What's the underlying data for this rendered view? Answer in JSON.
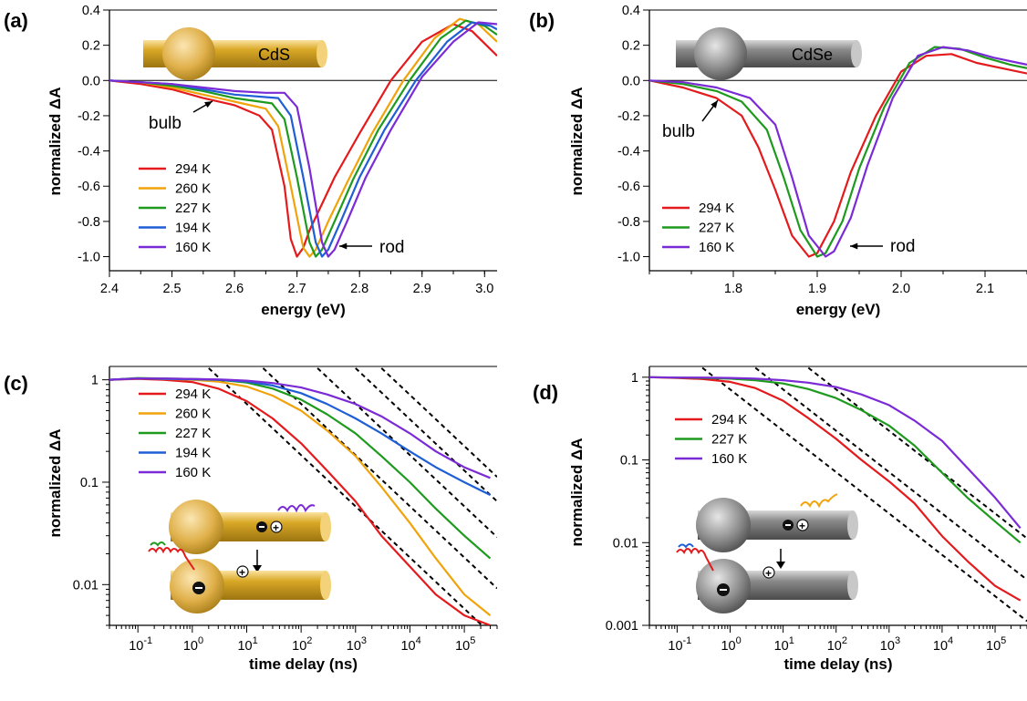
{
  "colors": {
    "294 K": "#e41a1c",
    "260 K": "#f0a30a",
    "227 K": "#1e9a1e",
    "194 K": "#1f5fd6",
    "160 K": "#7b2bd6",
    "cds_rod": "#d9a826",
    "cdse_rod": "#8a8a8a",
    "dashed_fit": "#000000"
  },
  "chart_data": [
    {
      "panel": "(a)",
      "type": "line",
      "material_label": "CdS",
      "xlabel": "energy (eV)",
      "ylabel": "normalized ΔA",
      "xlim": [
        2.4,
        3.02
      ],
      "ylim": [
        -1.08,
        0.4
      ],
      "xticks": [
        "2.4",
        "2.5",
        "2.6",
        "2.7",
        "2.8",
        "2.9",
        "3.0"
      ],
      "yticks": [
        "0.4",
        "0.2",
        "0.0",
        "-0.2",
        "-0.4",
        "-0.6",
        "-0.8",
        "-1.0"
      ],
      "annotations": [
        "bulb",
        "rod"
      ],
      "legend_position": "bottom-left",
      "series": [
        {
          "name": "294 K",
          "x": [
            2.4,
            2.45,
            2.5,
            2.55,
            2.6,
            2.64,
            2.66,
            2.68,
            2.69,
            2.7,
            2.71,
            2.72,
            2.74,
            2.76,
            2.8,
            2.85,
            2.9,
            2.95,
            2.98,
            3.02
          ],
          "y": [
            0,
            -0.02,
            -0.05,
            -0.1,
            -0.14,
            -0.2,
            -0.28,
            -0.6,
            -0.9,
            -1.0,
            -0.95,
            -0.85,
            -0.7,
            -0.55,
            -0.3,
            0.0,
            0.22,
            0.32,
            0.28,
            0.14
          ]
        },
        {
          "name": "260 K",
          "x": [
            2.4,
            2.45,
            2.5,
            2.55,
            2.6,
            2.65,
            2.67,
            2.69,
            2.71,
            2.72,
            2.73,
            2.75,
            2.78,
            2.82,
            2.87,
            2.92,
            2.96,
            2.99,
            3.02
          ],
          "y": [
            0,
            -0.01,
            -0.04,
            -0.08,
            -0.12,
            -0.16,
            -0.26,
            -0.6,
            -0.95,
            -1.0,
            -0.96,
            -0.8,
            -0.58,
            -0.3,
            0.0,
            0.24,
            0.35,
            0.32,
            0.22
          ]
        },
        {
          "name": "227 K",
          "x": [
            2.4,
            2.45,
            2.5,
            2.55,
            2.6,
            2.66,
            2.68,
            2.7,
            2.72,
            2.73,
            2.74,
            2.76,
            2.79,
            2.83,
            2.88,
            2.93,
            2.97,
            3.0,
            3.02
          ],
          "y": [
            0,
            -0.01,
            -0.03,
            -0.06,
            -0.1,
            -0.13,
            -0.22,
            -0.55,
            -0.92,
            -1.0,
            -0.96,
            -0.8,
            -0.56,
            -0.28,
            0.0,
            0.24,
            0.34,
            0.31,
            0.26
          ]
        },
        {
          "name": "194 K",
          "x": [
            2.4,
            2.45,
            2.5,
            2.55,
            2.6,
            2.67,
            2.69,
            2.71,
            2.73,
            2.74,
            2.75,
            2.77,
            2.8,
            2.84,
            2.89,
            2.94,
            2.98,
            3.01,
            3.02
          ],
          "y": [
            0,
            -0.01,
            -0.02,
            -0.05,
            -0.08,
            -0.1,
            -0.2,
            -0.55,
            -0.92,
            -1.0,
            -0.96,
            -0.8,
            -0.55,
            -0.28,
            0.0,
            0.22,
            0.33,
            0.31,
            0.29
          ]
        },
        {
          "name": "160 K",
          "x": [
            2.4,
            2.45,
            2.5,
            2.55,
            2.6,
            2.65,
            2.68,
            2.7,
            2.72,
            2.74,
            2.75,
            2.76,
            2.78,
            2.81,
            2.85,
            2.9,
            2.95,
            2.99,
            3.02
          ],
          "y": [
            0,
            -0.01,
            -0.02,
            -0.04,
            -0.06,
            -0.07,
            -0.07,
            -0.15,
            -0.5,
            -0.92,
            -1.0,
            -0.96,
            -0.8,
            -0.55,
            -0.28,
            0.02,
            0.22,
            0.33,
            0.32
          ]
        }
      ]
    },
    {
      "panel": "(b)",
      "type": "line",
      "material_label": "CdSe",
      "xlabel": "energy (eV)",
      "ylabel": "normalized ΔA",
      "xlim": [
        1.7,
        2.15
      ],
      "ylim": [
        -1.08,
        0.4
      ],
      "xticks": [
        "1.8",
        "1.9",
        "2.0",
        "2.1"
      ],
      "yticks": [
        "0.4",
        "0.2",
        "0.0",
        "-0.2",
        "-0.4",
        "-0.6",
        "-0.8",
        "-1.0"
      ],
      "annotations": [
        "bulb",
        "rod"
      ],
      "legend_position": "bottom-left",
      "series": [
        {
          "name": "294 K",
          "x": [
            1.7,
            1.74,
            1.78,
            1.81,
            1.83,
            1.85,
            1.87,
            1.89,
            1.9,
            1.92,
            1.94,
            1.97,
            2.0,
            2.03,
            2.06,
            2.09,
            2.12,
            2.15
          ],
          "y": [
            0,
            -0.04,
            -0.1,
            -0.2,
            -0.38,
            -0.62,
            -0.88,
            -1.0,
            -0.98,
            -0.8,
            -0.52,
            -0.2,
            0.05,
            0.14,
            0.15,
            0.1,
            0.07,
            0.04
          ]
        },
        {
          "name": "227 K",
          "x": [
            1.7,
            1.74,
            1.78,
            1.81,
            1.84,
            1.86,
            1.88,
            1.9,
            1.91,
            1.93,
            1.95,
            1.98,
            2.01,
            2.04,
            2.07,
            2.1,
            2.13,
            2.15
          ],
          "y": [
            0,
            -0.02,
            -0.06,
            -0.12,
            -0.28,
            -0.55,
            -0.85,
            -1.0,
            -0.98,
            -0.8,
            -0.5,
            -0.15,
            0.1,
            0.19,
            0.18,
            0.13,
            0.09,
            0.07
          ]
        },
        {
          "name": "160 K",
          "x": [
            1.7,
            1.74,
            1.78,
            1.82,
            1.85,
            1.87,
            1.89,
            1.91,
            1.92,
            1.94,
            1.96,
            1.99,
            2.02,
            2.05,
            2.08,
            2.11,
            2.14,
            2.15
          ],
          "y": [
            0,
            -0.01,
            -0.04,
            -0.1,
            -0.25,
            -0.55,
            -0.88,
            -1.0,
            -0.97,
            -0.78,
            -0.48,
            -0.1,
            0.14,
            0.19,
            0.17,
            0.13,
            0.1,
            0.09
          ]
        }
      ]
    },
    {
      "panel": "(c)",
      "type": "line",
      "xscale": "log",
      "yscale": "log",
      "xlabel": "time delay (ns)",
      "ylabel": "normalized ΔA",
      "xlim": [
        0.03,
        400000
      ],
      "ylim": [
        0.004,
        1.35
      ],
      "xticks": [
        0.1,
        1,
        10,
        100,
        1000,
        10000,
        100000
      ],
      "yticks": [
        "1",
        "0.1",
        "0.01"
      ],
      "legend_position": "top-left",
      "fit_lines": "dashed power-law fits",
      "series": [
        {
          "name": "294 K",
          "x": [
            0.03,
            0.1,
            0.3,
            1,
            3,
            10,
            30,
            100,
            300,
            1000,
            3000,
            10000,
            30000,
            100000,
            300000
          ],
          "y": [
            1.0,
            1.02,
            1.0,
            0.95,
            0.82,
            0.62,
            0.42,
            0.24,
            0.13,
            0.065,
            0.03,
            0.015,
            0.008,
            0.005,
            0.004
          ]
        },
        {
          "name": "260 K",
          "x": [
            0.03,
            0.1,
            0.3,
            1,
            3,
            10,
            30,
            100,
            300,
            1000,
            3000,
            10000,
            30000,
            100000,
            300000
          ],
          "y": [
            1.0,
            1.03,
            1.02,
            1.0,
            0.96,
            0.86,
            0.7,
            0.5,
            0.32,
            0.18,
            0.09,
            0.04,
            0.018,
            0.008,
            0.005
          ]
        },
        {
          "name": "227 K",
          "x": [
            0.03,
            0.1,
            0.3,
            1,
            3,
            10,
            30,
            100,
            300,
            1000,
            3000,
            10000,
            30000,
            100000,
            300000
          ],
          "y": [
            1.0,
            1.04,
            1.03,
            1.02,
            1.0,
            0.94,
            0.82,
            0.64,
            0.46,
            0.3,
            0.18,
            0.1,
            0.055,
            0.03,
            0.018
          ]
        },
        {
          "name": "194 K",
          "x": [
            0.03,
            0.1,
            0.3,
            1,
            3,
            10,
            30,
            100,
            300,
            1000,
            3000,
            10000,
            30000,
            100000,
            300000
          ],
          "y": [
            1.0,
            1.03,
            1.02,
            1.01,
            1.0,
            0.96,
            0.88,
            0.74,
            0.58,
            0.42,
            0.3,
            0.2,
            0.14,
            0.1,
            0.075
          ]
        },
        {
          "name": "160 K",
          "x": [
            0.03,
            0.1,
            0.3,
            1,
            3,
            10,
            30,
            100,
            300,
            1000,
            3000,
            10000,
            30000,
            100000,
            300000
          ],
          "y": [
            1.0,
            1.03,
            1.03,
            1.02,
            1.01,
            0.98,
            0.93,
            0.84,
            0.72,
            0.58,
            0.44,
            0.3,
            0.2,
            0.14,
            0.11
          ]
        }
      ]
    },
    {
      "panel": "(d)",
      "type": "line",
      "xscale": "log",
      "yscale": "log",
      "xlabel": "time delay (ns)",
      "ylabel": "normalized ΔA",
      "xlim": [
        0.03,
        400000
      ],
      "ylim": [
        0.001,
        1.35
      ],
      "xticks": [
        0.1,
        1,
        10,
        100,
        1000,
        10000,
        100000
      ],
      "yticks": [
        "1",
        "0.1",
        "0.01",
        "0.001"
      ],
      "legend_position": "top-left",
      "fit_lines": "dashed power-law fits",
      "series": [
        {
          "name": "294 K",
          "x": [
            0.03,
            0.1,
            0.3,
            1,
            3,
            10,
            30,
            100,
            300,
            1000,
            3000,
            10000,
            30000,
            100000,
            300000
          ],
          "y": [
            1.0,
            0.98,
            0.95,
            0.88,
            0.74,
            0.52,
            0.32,
            0.18,
            0.1,
            0.055,
            0.03,
            0.012,
            0.006,
            0.003,
            0.002
          ]
        },
        {
          "name": "227 K",
          "x": [
            0.03,
            0.1,
            0.3,
            1,
            3,
            10,
            30,
            100,
            300,
            1000,
            3000,
            10000,
            30000,
            100000,
            300000
          ],
          "y": [
            1.0,
            0.99,
            0.98,
            0.96,
            0.92,
            0.84,
            0.72,
            0.56,
            0.4,
            0.26,
            0.15,
            0.07,
            0.035,
            0.018,
            0.01
          ]
        },
        {
          "name": "160 K",
          "x": [
            0.03,
            0.1,
            0.3,
            1,
            3,
            10,
            30,
            100,
            300,
            1000,
            3000,
            10000,
            30000,
            100000,
            300000
          ],
          "y": [
            1.0,
            0.99,
            0.99,
            0.98,
            0.96,
            0.92,
            0.86,
            0.76,
            0.62,
            0.46,
            0.3,
            0.17,
            0.08,
            0.035,
            0.015
          ]
        }
      ]
    }
  ]
}
